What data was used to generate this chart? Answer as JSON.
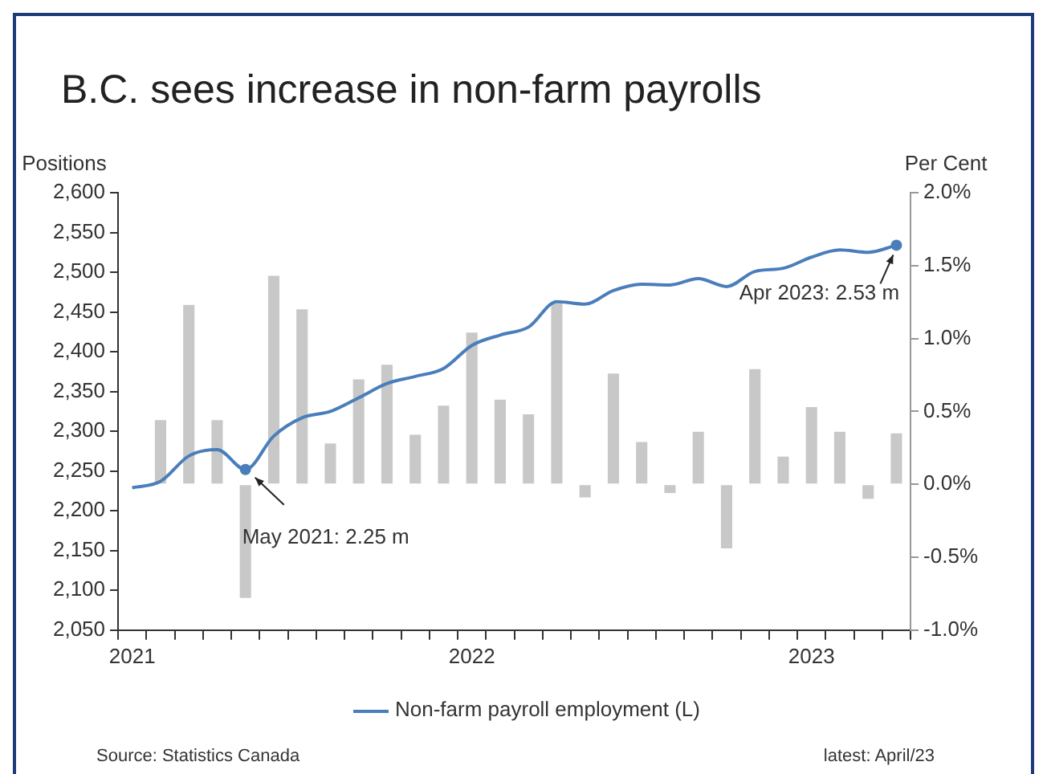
{
  "chart_data": {
    "type": "bar",
    "title": "B.C. sees increase in non-farm payrolls",
    "ylabel": "Positions",
    "y2label": "Per Cent",
    "categories": [
      "2021",
      null,
      null,
      null,
      null,
      null,
      null,
      null,
      null,
      null,
      null,
      null,
      "2022",
      null,
      null,
      null,
      null,
      null,
      null,
      null,
      null,
      null,
      null,
      null,
      "2023",
      null,
      null,
      null
    ],
    "series": [
      {
        "type": "line",
        "name": "Non-farm payroll employment (L)",
        "color": "#4a7ebb",
        "values": [
          2229,
          2237,
          2269,
          2277,
          2252,
          2294,
          2317,
          2325,
          2342,
          2360,
          2369,
          2379,
          2408,
          2421,
          2431,
          2463,
          2460,
          2477,
          2485,
          2484,
          2492,
          2482,
          2501,
          2505,
          2519,
          2528,
          2525,
          2534
        ]
      },
      {
        "type": "bar",
        "axis": "y2",
        "color": "#c8c8c8",
        "values": [
          null,
          0.44,
          1.23,
          0.44,
          -0.78,
          1.43,
          1.2,
          0.28,
          0.72,
          0.82,
          0.34,
          0.54,
          1.04,
          0.58,
          0.48,
          1.24,
          -0.09,
          0.76,
          0.29,
          -0.06,
          0.36,
          -0.44,
          0.79,
          0.19,
          0.53,
          0.36,
          -0.1,
          0.35
        ]
      }
    ],
    "ylim": [
      2050,
      2600
    ],
    "yticks": [
      {
        "value": 2050,
        "label": "2,050"
      },
      {
        "value": 2100,
        "label": "2,100"
      },
      {
        "value": 2150,
        "label": "2,150"
      },
      {
        "value": 2200,
        "label": "2,200"
      },
      {
        "value": 2250,
        "label": "2,250"
      },
      {
        "value": 2300,
        "label": "2,300"
      },
      {
        "value": 2350,
        "label": "2,350"
      },
      {
        "value": 2400,
        "label": "2,400"
      },
      {
        "value": 2450,
        "label": "2,450"
      },
      {
        "value": 2500,
        "label": "2,500"
      },
      {
        "value": 2550,
        "label": "2,550"
      },
      {
        "value": 2600,
        "label": "2,600"
      }
    ],
    "y2lim": [
      -1,
      2
    ],
    "y2ticks": [
      {
        "value": -1,
        "label": "-1.0%"
      },
      {
        "value": -0.5,
        "label": "-0.5%"
      },
      {
        "value": 0,
        "label": "0.0%"
      },
      {
        "value": 0.5,
        "label": "0.5%"
      },
      {
        "value": 1,
        "label": "1.0%"
      },
      {
        "value": 1.5,
        "label": "1.5%"
      },
      {
        "value": 2,
        "label": "2.0%"
      }
    ],
    "annotations": [
      {
        "text": "May 2021: 2.25 m",
        "y": 2252
      },
      {
        "text": "Apr 2023: 2.53 m",
        "y": 2534
      },
      "Source: Statistics Canada",
      "latest: April/23"
    ],
    "grid": false,
    "legend": "bottom",
    "marker": "none",
    "line_style": "solid"
  }
}
